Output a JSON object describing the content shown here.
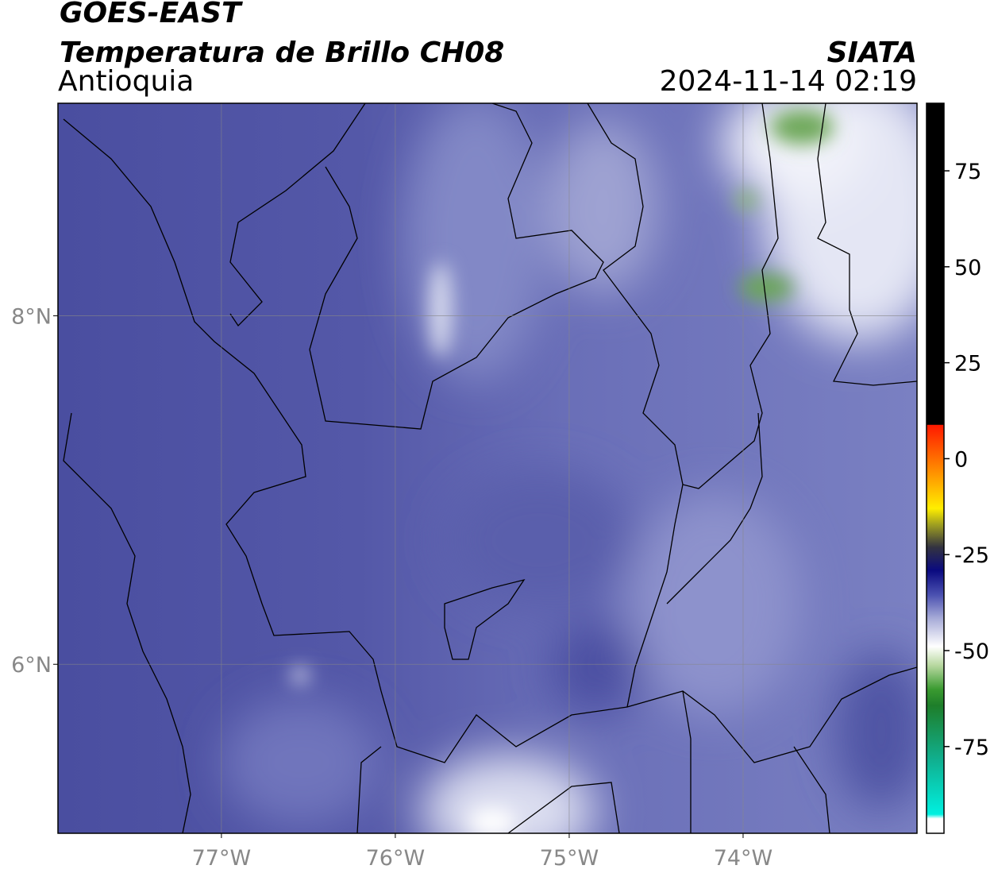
{
  "header": {
    "title": "GOES-EAST",
    "subtitle": "Temperatura de Brillo CH08",
    "region": "Antioquia",
    "source": "SIATA",
    "datetime": "2024-11-14 02:19"
  },
  "map": {
    "xlim": [
      -77.94,
      -73.0
    ],
    "ylim": [
      5.03,
      9.22
    ],
    "xticks": [
      {
        "value": -77,
        "label": "77°W"
      },
      {
        "value": -76,
        "label": "76°W"
      },
      {
        "value": -75,
        "label": "75°W"
      },
      {
        "value": -74,
        "label": "74°W"
      }
    ],
    "yticks": [
      {
        "value": 8,
        "label": "8°N"
      },
      {
        "value": 6,
        "label": "6°N"
      }
    ],
    "grid": true
  },
  "colorbar": {
    "lim": [
      -97.6,
      92.6
    ],
    "ticks": [
      75,
      50,
      25,
      0,
      -25,
      -50,
      -75
    ]
  }
}
